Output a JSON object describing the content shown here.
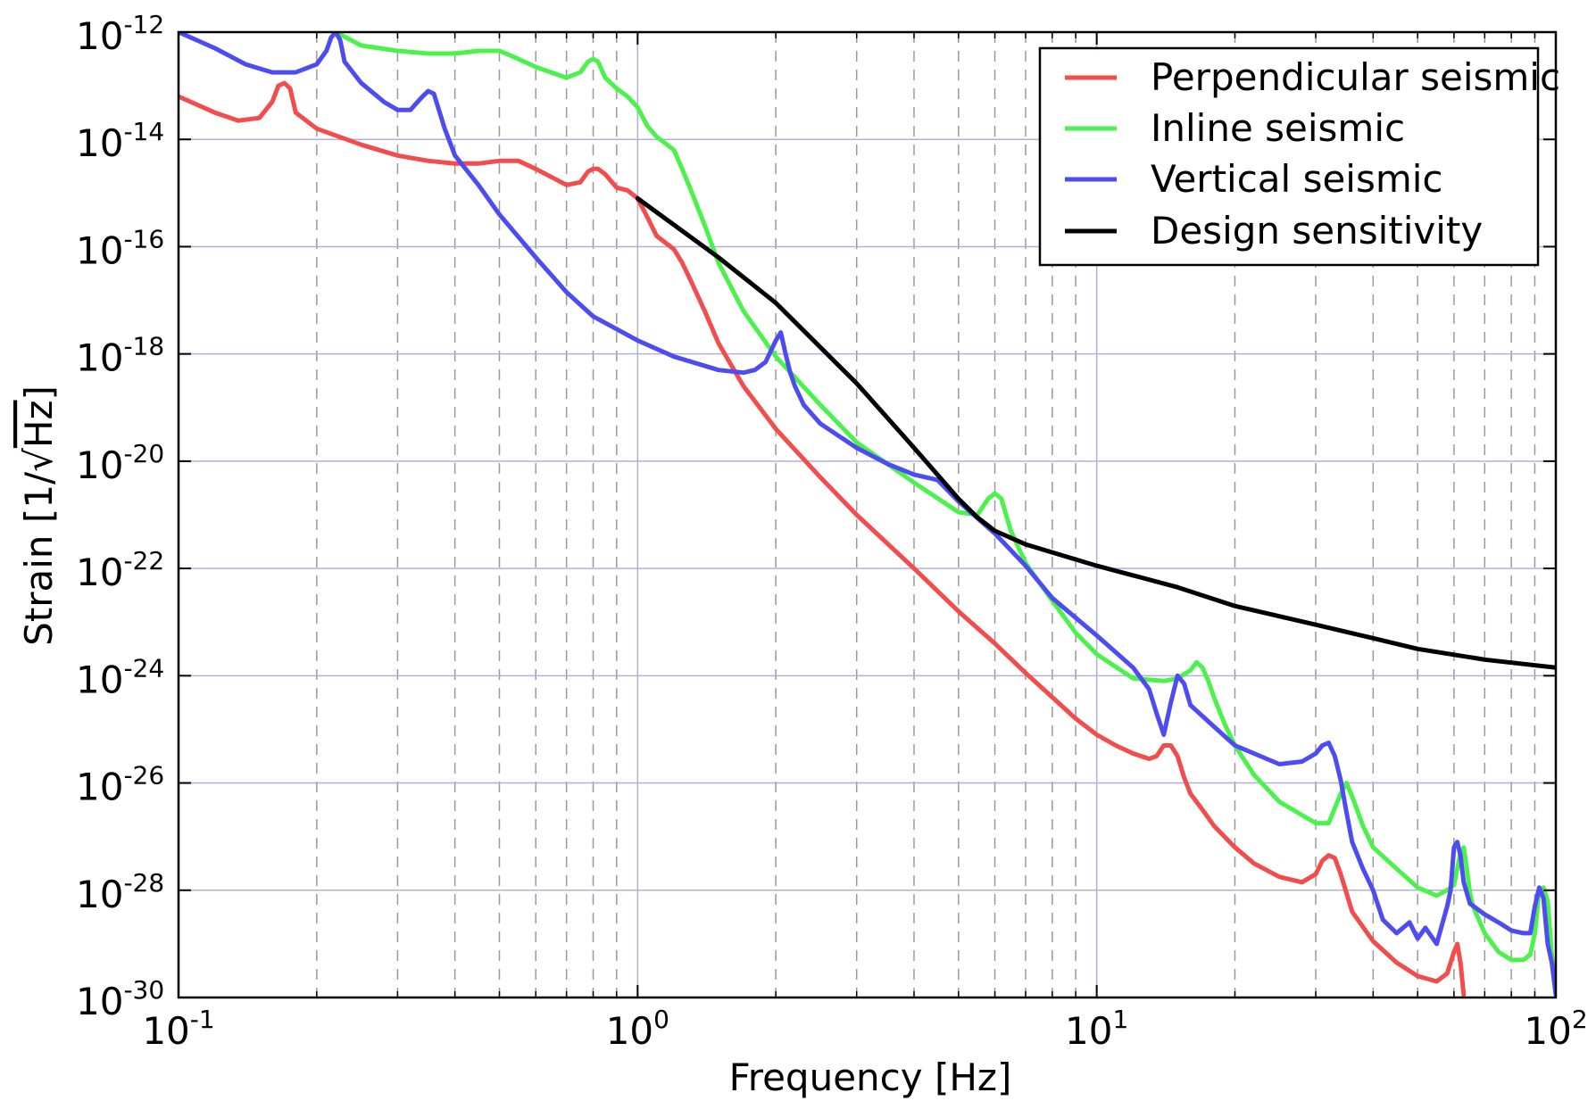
{
  "colors": {
    "perpendicular": "#f24c4c",
    "inline": "#4cf24c",
    "vertical": "#4c4cf2",
    "design": "#000000",
    "major_grid": "#b0b0e0",
    "minor_grid": "#9a9a9a"
  },
  "chart_data": {
    "type": "line",
    "xscale": "log",
    "yscale": "log",
    "xlabel": "Frequency [Hz]",
    "ylabel_prefix": "Strain [1/",
    "ylabel_sqrt_arg": "Hz",
    "ylabel_suffix": "]",
    "xlim": [
      0.1,
      100
    ],
    "ylim": [
      1e-30,
      1e-12
    ],
    "x_tick_labels": [
      {
        "base": "10",
        "exp": "-1",
        "value": 0.1
      },
      {
        "base": "10",
        "exp": "0",
        "value": 1
      },
      {
        "base": "10",
        "exp": "1",
        "value": 10
      },
      {
        "base": "10",
        "exp": "2",
        "value": 100
      }
    ],
    "y_tick_labels": [
      {
        "base": "10",
        "exp": "-12",
        "value": -12
      },
      {
        "base": "10",
        "exp": "-14",
        "value": -14
      },
      {
        "base": "10",
        "exp": "-16",
        "value": -16
      },
      {
        "base": "10",
        "exp": "-18",
        "value": -18
      },
      {
        "base": "10",
        "exp": "-20",
        "value": -20
      },
      {
        "base": "10",
        "exp": "-22",
        "value": -22
      },
      {
        "base": "10",
        "exp": "-24",
        "value": -24
      },
      {
        "base": "10",
        "exp": "-26",
        "value": -26
      },
      {
        "base": "10",
        "exp": "-28",
        "value": -28
      },
      {
        "base": "10",
        "exp": "-30",
        "value": -30
      }
    ],
    "grid": "major and minor",
    "legend_position": "top-right",
    "series": [
      {
        "name": "Perpendicular seismic",
        "color": "#f24c4c",
        "x": [
          0.1,
          0.12,
          0.135,
          0.15,
          0.16,
          0.165,
          0.17,
          0.175,
          0.18,
          0.2,
          0.25,
          0.3,
          0.35,
          0.4,
          0.45,
          0.5,
          0.55,
          0.6,
          0.7,
          0.75,
          0.78,
          0.8,
          0.82,
          0.85,
          0.9,
          0.95,
          1.0,
          1.05,
          1.1,
          1.2,
          1.25,
          1.3,
          1.4,
          1.5,
          1.7,
          2.0,
          2.5,
          3.0,
          4.0,
          5.0,
          6.0,
          7.0,
          8.0,
          9.0,
          10.0,
          11.0,
          12.0,
          13.0,
          13.5,
          14.0,
          14.5,
          15.0,
          15.5,
          16.0,
          17.0,
          18.0,
          20.0,
          22.0,
          25.0,
          28.0,
          30.0,
          31.0,
          32.0,
          33.0,
          34.0,
          36.0,
          40.0,
          45.0,
          50.0,
          55.0,
          58.0,
          60.0,
          61.0,
          62.0,
          63.0
        ],
        "y": [
          -13.2,
          -13.5,
          -13.65,
          -13.6,
          -13.3,
          -13.0,
          -12.95,
          -13.05,
          -13.5,
          -13.8,
          -14.1,
          -14.3,
          -14.4,
          -14.45,
          -14.45,
          -14.4,
          -14.4,
          -14.55,
          -14.85,
          -14.8,
          -14.6,
          -14.55,
          -14.55,
          -14.65,
          -14.9,
          -14.95,
          -15.1,
          -15.45,
          -15.8,
          -16.05,
          -16.3,
          -16.6,
          -17.2,
          -17.8,
          -18.6,
          -19.4,
          -20.3,
          -21.0,
          -22.0,
          -22.8,
          -23.4,
          -23.95,
          -24.4,
          -24.8,
          -25.1,
          -25.3,
          -25.45,
          -25.55,
          -25.5,
          -25.3,
          -25.3,
          -25.5,
          -25.9,
          -26.2,
          -26.5,
          -26.8,
          -27.2,
          -27.5,
          -27.75,
          -27.85,
          -27.7,
          -27.45,
          -27.35,
          -27.4,
          -27.7,
          -28.4,
          -28.95,
          -29.35,
          -29.6,
          -29.7,
          -29.55,
          -29.15,
          -29.0,
          -29.35,
          -29.95
        ],
        "series_label_ref": "legend.items.0.label"
      },
      {
        "name": "Inline seismic",
        "color": "#4cf24c",
        "x": [
          0.22,
          0.25,
          0.3,
          0.35,
          0.4,
          0.45,
          0.5,
          0.55,
          0.6,
          0.7,
          0.75,
          0.78,
          0.8,
          0.82,
          0.85,
          0.9,
          0.95,
          1.0,
          1.05,
          1.1,
          1.2,
          1.25,
          1.3,
          1.4,
          1.5,
          1.7,
          2.0,
          2.5,
          3.0,
          4.0,
          5.0,
          5.5,
          5.8,
          6.0,
          6.2,
          6.5,
          7.0,
          8.0,
          9.0,
          10.0,
          12.0,
          14.0,
          15.0,
          16.0,
          16.5,
          17.0,
          17.5,
          18.0,
          19.0,
          20.0,
          22.0,
          25.0,
          28.0,
          30.0,
          32.0,
          34.0,
          35.0,
          36.0,
          38.0,
          40.0,
          45.0,
          50.0,
          55.0,
          58.0,
          60.0,
          62.0,
          63.0,
          64.0,
          65.0,
          66.0,
          70.0,
          75.0,
          80.0,
          85.0,
          88.0,
          90.0,
          92.0,
          94.0,
          96.0,
          98.0,
          100.0
        ],
        "y": [
          -12.0,
          -12.25,
          -12.35,
          -12.4,
          -12.4,
          -12.35,
          -12.35,
          -12.5,
          -12.65,
          -12.85,
          -12.75,
          -12.55,
          -12.5,
          -12.55,
          -12.85,
          -13.05,
          -13.2,
          -13.4,
          -13.75,
          -13.95,
          -14.2,
          -14.55,
          -14.9,
          -15.6,
          -16.3,
          -17.2,
          -18.05,
          -18.95,
          -19.65,
          -20.4,
          -20.95,
          -21.0,
          -20.7,
          -20.6,
          -20.7,
          -21.3,
          -21.9,
          -22.6,
          -23.2,
          -23.6,
          -24.05,
          -24.1,
          -24.05,
          -23.9,
          -23.75,
          -23.85,
          -24.1,
          -24.4,
          -24.9,
          -25.3,
          -25.85,
          -26.35,
          -26.6,
          -26.75,
          -26.75,
          -26.2,
          -26.0,
          -26.25,
          -26.8,
          -27.2,
          -27.6,
          -27.95,
          -28.1,
          -28.0,
          -27.9,
          -27.3,
          -27.2,
          -27.6,
          -28.05,
          -28.3,
          -28.8,
          -29.15,
          -29.3,
          -29.3,
          -29.2,
          -28.8,
          -28.0,
          -27.95,
          -28.2,
          -29.2,
          -29.95
        ],
        "series_label_ref": "legend.items.1.label"
      },
      {
        "name": "Vertical seismic",
        "color": "#4c4cf2",
        "x": [
          0.1,
          0.12,
          0.14,
          0.16,
          0.18,
          0.2,
          0.21,
          0.215,
          0.22,
          0.225,
          0.23,
          0.25,
          0.28,
          0.3,
          0.32,
          0.34,
          0.35,
          0.36,
          0.38,
          0.4,
          0.45,
          0.5,
          0.6,
          0.7,
          0.8,
          1.0,
          1.2,
          1.5,
          1.7,
          1.8,
          1.9,
          2.0,
          2.05,
          2.1,
          2.15,
          2.2,
          2.3,
          2.5,
          3.0,
          3.5,
          4.0,
          4.5,
          5.0,
          6.0,
          7.0,
          8.0,
          10.0,
          12.0,
          13.0,
          13.5,
          14.0,
          14.5,
          15.0,
          15.5,
          16.0,
          18.0,
          20.0,
          25.0,
          28.0,
          30.0,
          31.0,
          32.0,
          33.0,
          34.0,
          35.0,
          36.0,
          38.0,
          40.0,
          42.0,
          45.0,
          48.0,
          50.0,
          52.0,
          55.0,
          58.0,
          59.0,
          60.0,
          61.0,
          62.0,
          63.0,
          65.0,
          70.0,
          75.0,
          80.0,
          85.0,
          88.0,
          90.0,
          92.0,
          94.0,
          96.0,
          98.0,
          100.0
        ],
        "y": [
          -12.0,
          -12.3,
          -12.6,
          -12.75,
          -12.75,
          -12.6,
          -12.35,
          -12.1,
          -12.0,
          -12.15,
          -12.55,
          -12.95,
          -13.3,
          -13.45,
          -13.45,
          -13.2,
          -13.1,
          -13.15,
          -13.8,
          -14.3,
          -14.85,
          -15.4,
          -16.2,
          -16.85,
          -17.3,
          -17.75,
          -18.05,
          -18.3,
          -18.35,
          -18.3,
          -18.15,
          -17.75,
          -17.6,
          -18.0,
          -18.35,
          -18.6,
          -18.95,
          -19.3,
          -19.75,
          -20.05,
          -20.25,
          -20.35,
          -20.75,
          -21.35,
          -21.95,
          -22.55,
          -23.25,
          -23.85,
          -24.25,
          -24.7,
          -25.1,
          -24.5,
          -24.0,
          -24.15,
          -24.55,
          -24.95,
          -25.3,
          -25.65,
          -25.6,
          -25.45,
          -25.3,
          -25.25,
          -25.5,
          -25.95,
          -26.55,
          -27.1,
          -27.6,
          -28.0,
          -28.55,
          -28.8,
          -28.6,
          -28.9,
          -28.7,
          -29.0,
          -28.3,
          -28.0,
          -27.2,
          -27.1,
          -27.35,
          -27.85,
          -28.25,
          -28.45,
          -28.6,
          -28.75,
          -28.8,
          -28.8,
          -28.3,
          -27.95,
          -28.15,
          -29.0,
          -29.35,
          -29.95
        ],
        "series_label_ref": "legend.items.2.label"
      },
      {
        "name": "Design sensitivity",
        "color": "#000000",
        "x": [
          1.0,
          1.5,
          2.0,
          3.0,
          4.0,
          5.0,
          5.5,
          6.0,
          7.0,
          8.0,
          10.0,
          15.0,
          20.0,
          30.0,
          40.0,
          50.0,
          70.0,
          100.0
        ],
        "y": [
          -15.1,
          -16.2,
          -17.05,
          -18.55,
          -19.75,
          -20.7,
          -21.05,
          -21.3,
          -21.55,
          -21.7,
          -21.95,
          -22.35,
          -22.7,
          -23.05,
          -23.3,
          -23.5,
          -23.7,
          -23.85
        ],
        "series_label_ref": "legend.items.3.label"
      }
    ]
  },
  "legend": {
    "items": [
      {
        "label": "Perpendicular seismic",
        "color": "#f24c4c"
      },
      {
        "label": "Inline seismic",
        "color": "#4cf24c"
      },
      {
        "label": "Vertical seismic",
        "color": "#4c4cf2"
      },
      {
        "label": "Design sensitivity",
        "color": "#000000"
      }
    ]
  }
}
